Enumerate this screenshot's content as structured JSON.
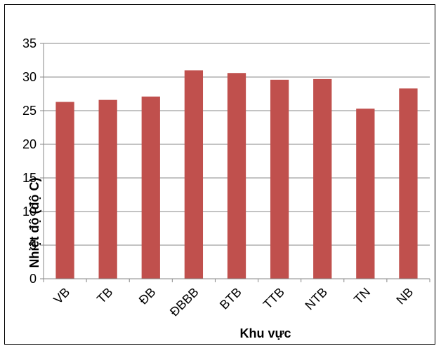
{
  "chart_data": {
    "type": "bar",
    "title": "",
    "xlabel": "Khu vực",
    "ylabel": "Nhiệt độ (độ C)",
    "categories": [
      "VB",
      "TB",
      "ĐB",
      "ĐBBB",
      "BTB",
      "TTB",
      "NTB",
      "TN",
      "NB"
    ],
    "values": [
      26.3,
      26.6,
      27.1,
      31.0,
      30.6,
      29.6,
      29.7,
      25.3,
      28.3
    ],
    "ylim": [
      0,
      35
    ],
    "yticks": [
      "0",
      "5",
      "10",
      "15",
      "20",
      "25",
      "30",
      "35"
    ],
    "bar_color": "#C0504D",
    "grid": true,
    "legend": "none"
  }
}
